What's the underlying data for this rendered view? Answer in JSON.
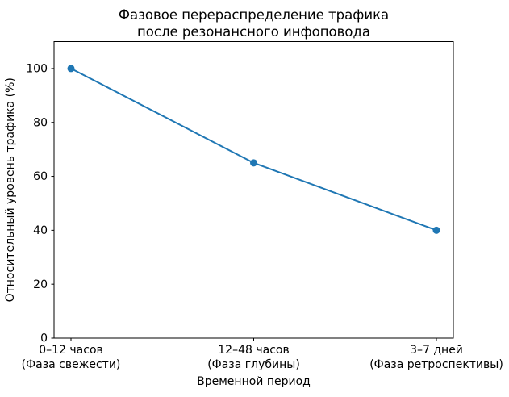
{
  "chart_data": {
    "type": "line",
    "title_lines": [
      "Фазовое перераспределение трафика",
      "после резонансного инфоповода"
    ],
    "xlabel": "Временной период",
    "ylabel": "Относительный уровень трафика (%)",
    "categories": [
      [
        "0–12 часов",
        "(Фаза свежести)"
      ],
      [
        "12–48 часов",
        "(Фаза глубины)"
      ],
      [
        "3–7 дней",
        "(Фаза ретроспективы)"
      ]
    ],
    "values": [
      100,
      65,
      40
    ],
    "yticks": [
      0,
      20,
      40,
      60,
      80,
      100
    ],
    "ylim": [
      0,
      110
    ],
    "grid": false,
    "legend": "none",
    "line_color": "#1f77b4",
    "marker": "circle",
    "background_color": "#ffffff",
    "text_color": "#000000"
  }
}
